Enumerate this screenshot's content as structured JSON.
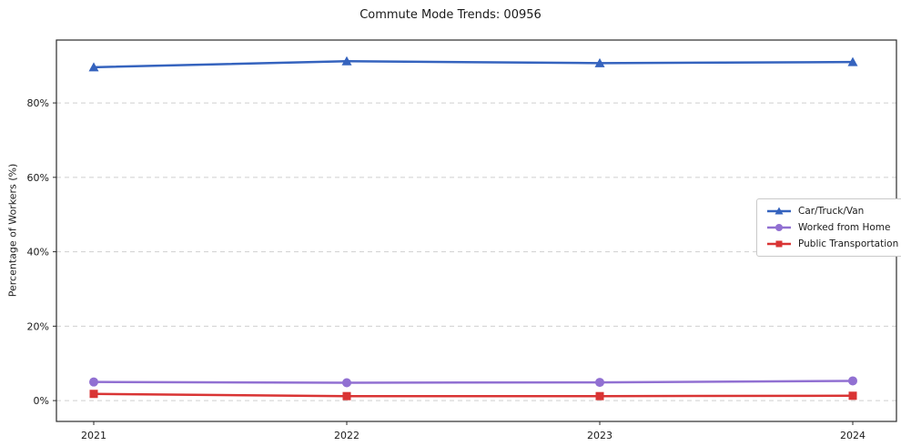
{
  "chart_data": {
    "type": "line",
    "title": "Commute Mode Trends: 00956",
    "xlabel": "",
    "ylabel": "Percentage of Workers (%)",
    "categories": [
      "2021",
      "2022",
      "2023",
      "2024"
    ],
    "series": [
      {
        "name": "Car/Truck/Van",
        "color": "#3563be",
        "marker": "triangle",
        "values": [
          89.6,
          91.2,
          90.7,
          91.0
        ]
      },
      {
        "name": "Worked from Home",
        "color": "#9170d2",
        "marker": "circle",
        "values": [
          5.0,
          4.8,
          4.9,
          5.3
        ]
      },
      {
        "name": "Public Transportation",
        "color": "#d93434",
        "marker": "square",
        "values": [
          1.8,
          1.2,
          1.2,
          1.3
        ]
      }
    ],
    "ylim": [
      -5.6,
      96.9
    ],
    "yticks": [
      0,
      20,
      40,
      60,
      80
    ],
    "ytick_suffix": "%",
    "grid": "horizontal-dashed",
    "legend_position": "middle-right"
  }
}
